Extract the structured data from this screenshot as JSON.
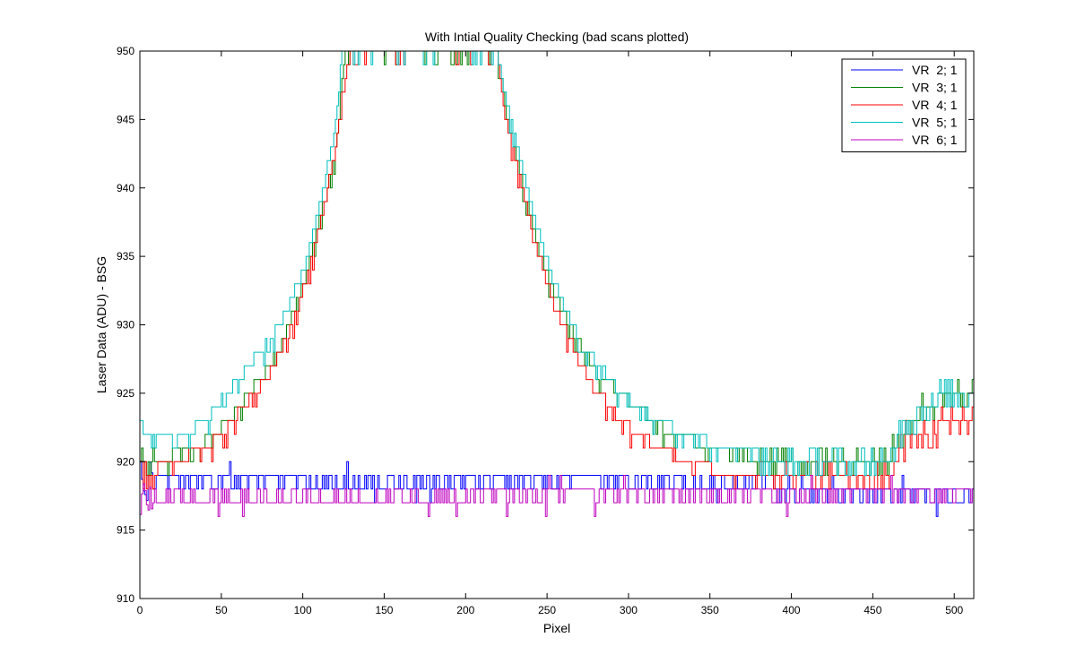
{
  "chart_data": {
    "type": "line",
    "title": "With Intial Quality Checking (bad scans plotted)",
    "xlabel": "Pixel",
    "ylabel": "Laser Data (ADU) - BSG",
    "xlim": [
      0,
      512
    ],
    "ylim": [
      910,
      950
    ],
    "xticks": [
      0,
      50,
      100,
      150,
      200,
      250,
      300,
      350,
      400,
      450,
      500
    ],
    "yticks": [
      910,
      915,
      920,
      925,
      930,
      935,
      940,
      945,
      950
    ],
    "grid": false,
    "legend_position": "top-right",
    "series": [
      {
        "name": "VR  2; 1",
        "color": "#0000ff",
        "kind": "noisy",
        "x": [
          0,
          5,
          20,
          60,
          100,
          150,
          200,
          250,
          300,
          350,
          380,
          400,
          420,
          512
        ],
        "y": [
          918,
          918.5,
          918.5,
          918.5,
          918.5,
          918.3,
          918.5,
          918.5,
          918.5,
          918.4,
          918.2,
          917.8,
          917.5,
          917.5
        ],
        "amplitude": 0.5
      },
      {
        "name": "VR  3; 1",
        "color": "#008000",
        "kind": "trend",
        "x": [
          0,
          5,
          10,
          20,
          30,
          40,
          50,
          60,
          70,
          80,
          90,
          100,
          110,
          120,
          126,
          219,
          225,
          235,
          245,
          255,
          265,
          275,
          285,
          295,
          305,
          320,
          340,
          360,
          380,
          400,
          420,
          440,
          460,
          470,
          490,
          512
        ],
        "y": [
          921,
          919.5,
          920,
          920.5,
          921,
          921.5,
          922.5,
          924,
          925.5,
          927,
          929.5,
          933,
          937.5,
          943,
          950,
          950,
          945,
          940,
          935.5,
          932,
          929.5,
          927.5,
          926,
          925,
          924,
          922.5,
          921.5,
          920.8,
          920.3,
          920,
          919.8,
          919.8,
          920,
          922.5,
          924.5,
          925.5
        ]
      },
      {
        "name": "VR  4; 1",
        "color": "#ff0000",
        "kind": "trend",
        "x": [
          0,
          5,
          10,
          20,
          30,
          40,
          50,
          60,
          70,
          80,
          90,
          100,
          110,
          120,
          128,
          219,
          225,
          235,
          245,
          255,
          265,
          275,
          285,
          295,
          305,
          320,
          340,
          360,
          380,
          400,
          420,
          440,
          460,
          470,
          490,
          512
        ],
        "y": [
          920,
          918.5,
          919.5,
          920,
          920.5,
          921,
          922,
          923.5,
          925,
          926.5,
          929,
          932.5,
          937,
          943,
          950,
          950,
          944.5,
          939.5,
          935,
          931,
          928.5,
          926,
          924.5,
          923,
          922,
          921,
          919.8,
          919.2,
          918.8,
          918.6,
          918.6,
          918.8,
          919.2,
          921.5,
          922.5,
          922.5
        ]
      },
      {
        "name": "VR  5; 1",
        "color": "#00bfbf",
        "kind": "trend",
        "x": [
          0,
          5,
          10,
          20,
          30,
          40,
          50,
          60,
          70,
          80,
          90,
          100,
          110,
          120,
          124,
          219,
          225,
          235,
          245,
          255,
          265,
          275,
          285,
          295,
          305,
          320,
          340,
          360,
          380,
          400,
          420,
          440,
          460,
          470,
          490,
          512
        ],
        "y": [
          922.5,
          921.5,
          922,
          922,
          922.2,
          923,
          924.5,
          926,
          927.5,
          929,
          931,
          934,
          938.5,
          944.5,
          950,
          950,
          946,
          941,
          936.5,
          933,
          930,
          928,
          926.5,
          925,
          924,
          922.8,
          921.8,
          921,
          920.5,
          920.2,
          920,
          920,
          920.5,
          923,
          924.5,
          925
        ]
      },
      {
        "name": "VR  6; 1",
        "color": "#bf00bf",
        "kind": "noisy",
        "x": [
          0,
          5,
          20,
          60,
          100,
          150,
          200,
          250,
          300,
          350,
          400,
          450,
          512
        ],
        "y": [
          916,
          917.5,
          917.3,
          917.3,
          917.2,
          917.3,
          917.5,
          917.5,
          917.6,
          917.6,
          917.6,
          917.6,
          917.7
        ],
        "amplitude": 0.6
      }
    ]
  }
}
